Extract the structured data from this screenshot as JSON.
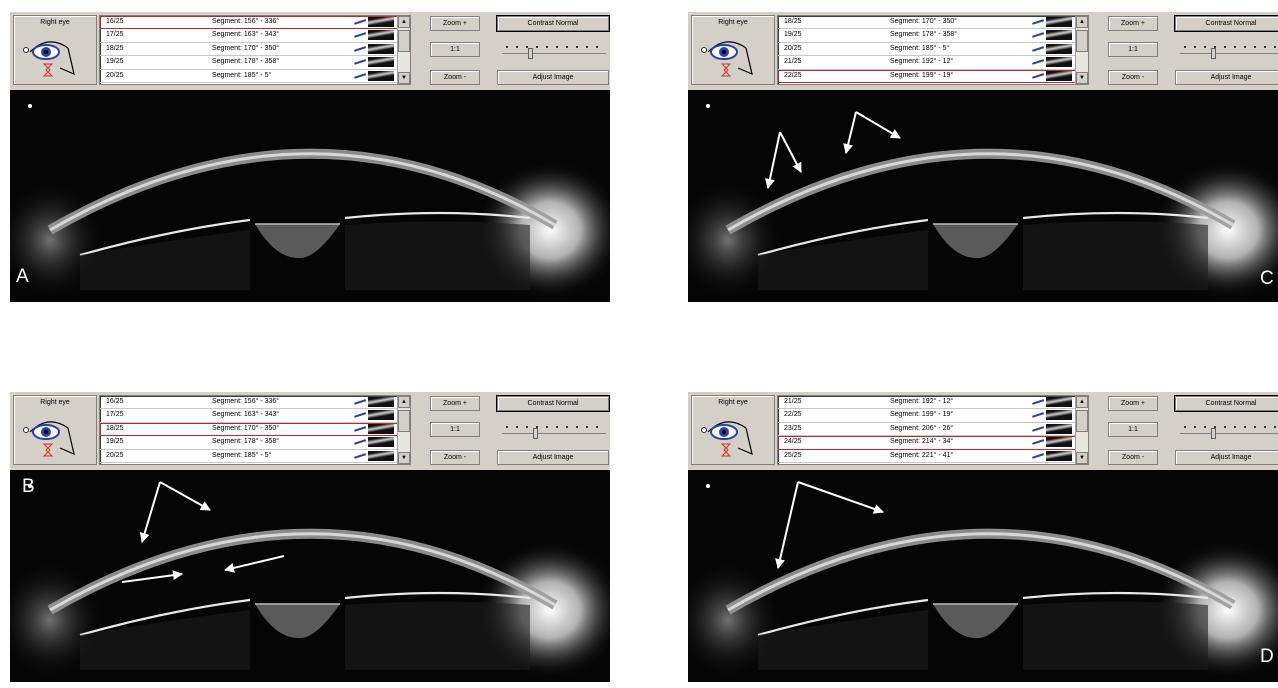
{
  "panels": [
    {
      "letter": "A",
      "eye_label": "Right eye",
      "rows": [
        {
          "id": "16/25",
          "segment": "Segment: 156° - 336°",
          "selected": true
        },
        {
          "id": "17/25",
          "segment": "Segment: 163° - 343°",
          "selected": false
        },
        {
          "id": "18/25",
          "segment": "Segment: 170° - 350°",
          "selected": false
        },
        {
          "id": "19/25",
          "segment": "Segment: 178° - 358°",
          "selected": false
        },
        {
          "id": "20/25",
          "segment": "Segment: 185° - 5°",
          "selected": false
        }
      ],
      "zoom_plus": "Zoom +",
      "one_to_one": "1:1",
      "zoom_minus": "Zoom -",
      "contrast": "Contrast Normal",
      "adjust": "Adjust Image",
      "slider_fraction": 0.25,
      "arrows": "none"
    },
    {
      "letter": "C",
      "eye_label": "Right eye",
      "rows": [
        {
          "id": "18/25",
          "segment": "Segment: 170° - 350°",
          "selected": false
        },
        {
          "id": "19/25",
          "segment": "Segment: 178° - 358°",
          "selected": false
        },
        {
          "id": "20/25",
          "segment": "Segment: 185° - 5°",
          "selected": false
        },
        {
          "id": "21/25",
          "segment": "Segment: 192° - 12°",
          "selected": false
        },
        {
          "id": "22/25",
          "segment": "Segment: 199° - 19°",
          "selected": true
        }
      ],
      "zoom_plus": "Zoom +",
      "one_to_one": "1:1",
      "zoom_minus": "Zoom -",
      "contrast": "Contrast Normal",
      "adjust": "Adjust Image",
      "slider_fraction": 0.3,
      "arrows": "C"
    },
    {
      "letter": "B",
      "eye_label": "Right eye",
      "rows": [
        {
          "id": "16/25",
          "segment": "Segment: 156° - 336°",
          "selected": false
        },
        {
          "id": "17/25",
          "segment": "Segment: 163° - 343°",
          "selected": false
        },
        {
          "id": "18/25",
          "segment": "Segment: 170° - 350°",
          "selected": true
        },
        {
          "id": "19/25",
          "segment": "Segment: 178° - 358°",
          "selected": false
        },
        {
          "id": "20/25",
          "segment": "Segment: 185° - 5°",
          "selected": false
        }
      ],
      "zoom_plus": "Zoom +",
      "one_to_one": "1:1",
      "zoom_minus": "Zoom -",
      "contrast": "Contrast Normal",
      "adjust": "Adjust Image",
      "slider_fraction": 0.3,
      "arrows": "B"
    },
    {
      "letter": "D",
      "eye_label": "Right eye",
      "rows": [
        {
          "id": "21/25",
          "segment": "Segment: 192° - 12°",
          "selected": false
        },
        {
          "id": "22/25",
          "segment": "Segment: 199° - 19°",
          "selected": false
        },
        {
          "id": "23/25",
          "segment": "Segment: 206° - 26°",
          "selected": false
        },
        {
          "id": "24/25",
          "segment": "Segment: 214° - 34°",
          "selected": true
        },
        {
          "id": "25/25",
          "segment": "Segment: 221° - 41°",
          "selected": false
        }
      ],
      "zoom_plus": "Zoom +",
      "one_to_one": "1:1",
      "zoom_minus": "Zoom -",
      "contrast": "Contrast Normal",
      "adjust": "Adjust Image",
      "slider_fraction": 0.3,
      "arrows": "D"
    }
  ],
  "colors": {
    "window_gray": "#d4d0c8",
    "selection_outline": "#c0282d",
    "eye_icon_blue": "#2a3fb0",
    "eye_icon_red": "#d03030"
  }
}
